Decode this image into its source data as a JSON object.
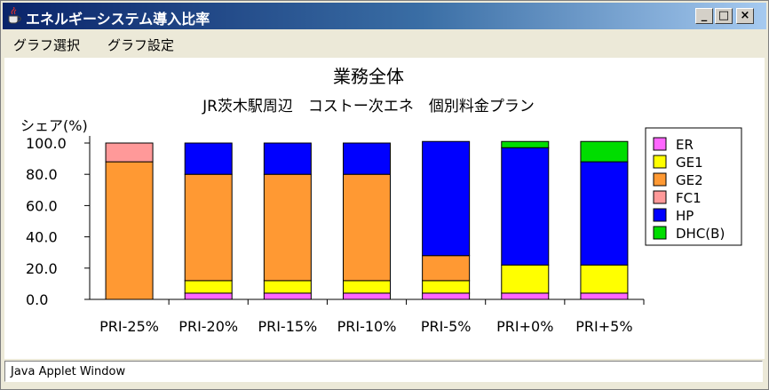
{
  "window": {
    "title": "エネルギーシステム導入比率"
  },
  "titlebar_buttons": {
    "minimize": "_",
    "maximize": "□",
    "close": "×"
  },
  "menu": {
    "items": [
      "グラフ選択",
      "グラフ設定"
    ]
  },
  "chart_data": {
    "type": "bar",
    "stacked": true,
    "title": "業務全体",
    "subtitle": "JR茨木駅周辺　コストー次エネ　個別料金プラン",
    "ylabel": "シェア(%)",
    "xlabel": "",
    "ylim": [
      0,
      100
    ],
    "yticks": [
      "100.0",
      "80.0",
      "60.0",
      "40.0",
      "20.0",
      "0.0"
    ],
    "ytick_values": [
      100,
      80,
      60,
      40,
      20,
      0
    ],
    "categories": [
      "PRI-25%",
      "PRI-20%",
      "PRI-15%",
      "PRI-10%",
      "PRI-5%",
      "PRI+0%",
      "PRI+5%"
    ],
    "series": [
      {
        "name": "ER",
        "color": "#ff66ff",
        "values": [
          0,
          4,
          4,
          4,
          4,
          4,
          4
        ]
      },
      {
        "name": "GE1",
        "color": "#ffff00",
        "values": [
          0,
          8,
          8,
          8,
          8,
          18,
          18
        ]
      },
      {
        "name": "GE2",
        "color": "#ff9933",
        "values": [
          88,
          68,
          68,
          68,
          16,
          0,
          0
        ]
      },
      {
        "name": "FC1",
        "color": "#ff9999",
        "values": [
          12,
          0,
          0,
          0,
          0,
          0,
          0
        ]
      },
      {
        "name": "HP",
        "color": "#0000ff",
        "values": [
          0,
          20,
          20,
          20,
          73,
          75,
          66
        ]
      },
      {
        "name": "DHC(B)",
        "color": "#00dd00",
        "values": [
          0,
          0,
          0,
          0,
          0,
          4,
          13
        ]
      }
    ],
    "grid": false,
    "legend_position": "right"
  },
  "statusbar": {
    "text": "Java Applet Window"
  }
}
